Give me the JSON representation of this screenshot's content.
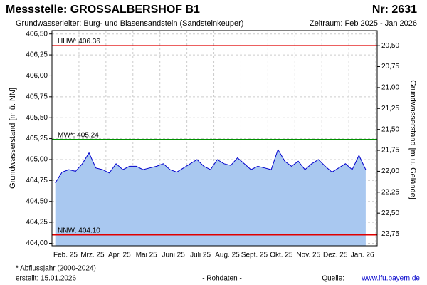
{
  "chart_data": {
    "type": "area",
    "title": "Messstelle: GROSSALBERSHOF B1",
    "number": "Nr: 2631",
    "subtitle": "Grundwasserleiter:  Burg- und Blasensandstein (Sandsteinkeuper)",
    "period": "Zeitraum: Feb 2025 - Jan 2026",
    "ylabel": "Grundwasserstand [m ü. NN]",
    "y2label": "Grundwasserstand [m u. Gelände]",
    "categories": [
      null,
      null,
      "Feb. 25",
      null,
      null,
      null,
      "Mrz. 25",
      null,
      null,
      null,
      "Apr. 25",
      null,
      null,
      null,
      "Mai 25",
      null,
      null,
      null,
      "Juni 25",
      null,
      null,
      null,
      "Juli 25",
      null,
      null,
      null,
      "Aug. 25",
      null,
      null,
      null,
      "Sept. 25",
      null,
      null,
      null,
      "Okt. 25",
      null,
      null,
      null,
      "Nov. 25",
      null,
      null,
      null,
      "Dez. 25",
      null,
      null,
      null,
      "Jan. 26"
    ],
    "series": [
      {
        "name": "Grundwasserstand",
        "color": "#0000cc",
        "fill": "#a9c8f0",
        "values": [
          404.72,
          404.85,
          404.88,
          404.86,
          404.95,
          405.08,
          404.9,
          404.88,
          404.84,
          404.95,
          404.88,
          404.92,
          404.92,
          404.88,
          404.9,
          404.92,
          404.95,
          404.88,
          404.85,
          404.9,
          404.95,
          405.0,
          404.92,
          404.88,
          405.0,
          404.95,
          404.93,
          405.02,
          404.95,
          404.88,
          404.92,
          404.9,
          404.88,
          405.12,
          404.98,
          404.92,
          404.98,
          404.88,
          404.95,
          405.0,
          404.92,
          404.85,
          404.9,
          404.95,
          404.88,
          405.05,
          404.88
        ]
      }
    ],
    "lines": [
      {
        "label": "HHW: 406.36",
        "value": 406.36,
        "color": "#e00000"
      },
      {
        "label": "MW*: 405.24",
        "value": 405.24,
        "color": "#009000"
      },
      {
        "label": "NNW: 404.10",
        "value": 404.1,
        "color": "#e00000"
      }
    ],
    "ylim": [
      403.97,
      406.54
    ],
    "yticks": [
      {
        "value": 404.0,
        "label": "404,00"
      },
      {
        "value": 404.25,
        "label": "404,25"
      },
      {
        "value": 404.5,
        "label": "404,50"
      },
      {
        "value": 404.75,
        "label": "404,75"
      },
      {
        "value": 405.0,
        "label": "405,00"
      },
      {
        "value": 405.25,
        "label": "405,25"
      },
      {
        "value": 405.5,
        "label": "405,50"
      },
      {
        "value": 405.75,
        "label": "405,75"
      },
      {
        "value": 406.0,
        "label": "406,00"
      },
      {
        "value": 406.25,
        "label": "406,25"
      },
      {
        "value": 406.5,
        "label": "406,50"
      }
    ],
    "y2lim": [
      22.89,
      20.32
    ],
    "y2ticks": [
      {
        "value": 20.5,
        "label": "20,50"
      },
      {
        "value": 20.75,
        "label": "20,75"
      },
      {
        "value": 21.0,
        "label": "21,00"
      },
      {
        "value": 21.25,
        "label": "21,25"
      },
      {
        "value": 21.5,
        "label": "21,50"
      },
      {
        "value": 21.75,
        "label": "21,75"
      },
      {
        "value": 22.0,
        "label": "22,00"
      },
      {
        "value": 22.25,
        "label": "22,25"
      },
      {
        "value": 22.5,
        "label": "22,50"
      },
      {
        "value": 22.75,
        "label": "22,75"
      }
    ],
    "grid": true,
    "footer": {
      "note": "* Abflussjahr (2000-2024)",
      "created": "erstellt:  15.01.2026",
      "status": "- Rohdaten -",
      "source_label": "Quelle:",
      "source_url": "www.lfu.bayern.de"
    }
  }
}
